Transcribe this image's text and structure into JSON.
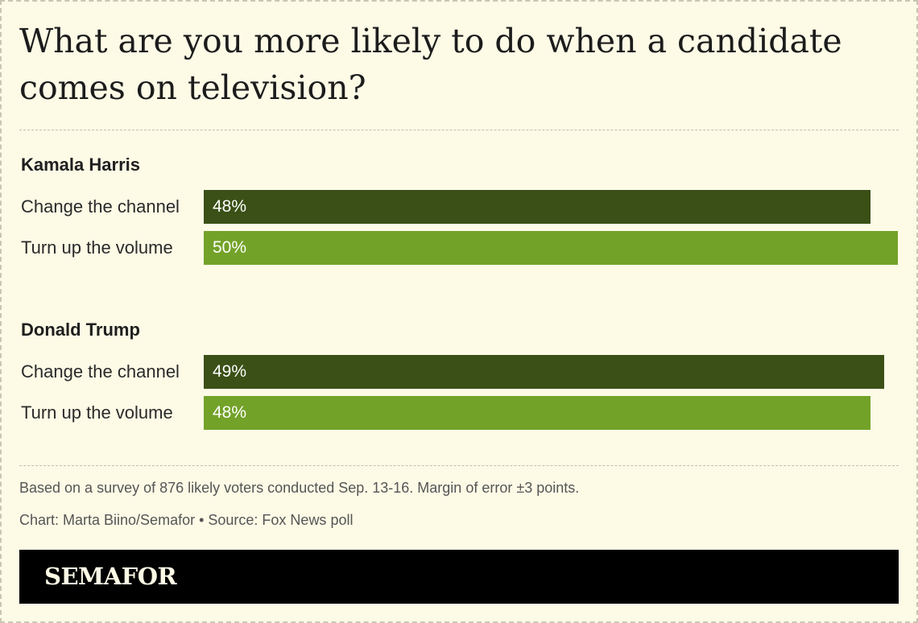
{
  "chart_data": {
    "type": "bar",
    "orientation": "horizontal",
    "title": "What are you more likely to do when a candidate comes on television?",
    "xlim": [
      0,
      50
    ],
    "groups": [
      {
        "name": "Kamala Harris",
        "bars": [
          {
            "category": "Change the channel",
            "value": 48,
            "label": "48%",
            "color": "#3a5016"
          },
          {
            "category": "Turn up the volume",
            "value": 50,
            "label": "50%",
            "color": "#73a228"
          }
        ]
      },
      {
        "name": "Donald Trump",
        "bars": [
          {
            "category": "Change the channel",
            "value": 49,
            "label": "49%",
            "color": "#3a5016"
          },
          {
            "category": "Turn up the volume",
            "value": 48,
            "label": "48%",
            "color": "#73a228"
          }
        ]
      }
    ]
  },
  "footer": {
    "note": "Based on a survey of 876 likely voters conducted Sep. 13-16. Margin of error ±3 points.",
    "credit": "Chart: Marta Biino/Semafor • Source: Fox News poll",
    "brand": "SEMAFOR"
  }
}
